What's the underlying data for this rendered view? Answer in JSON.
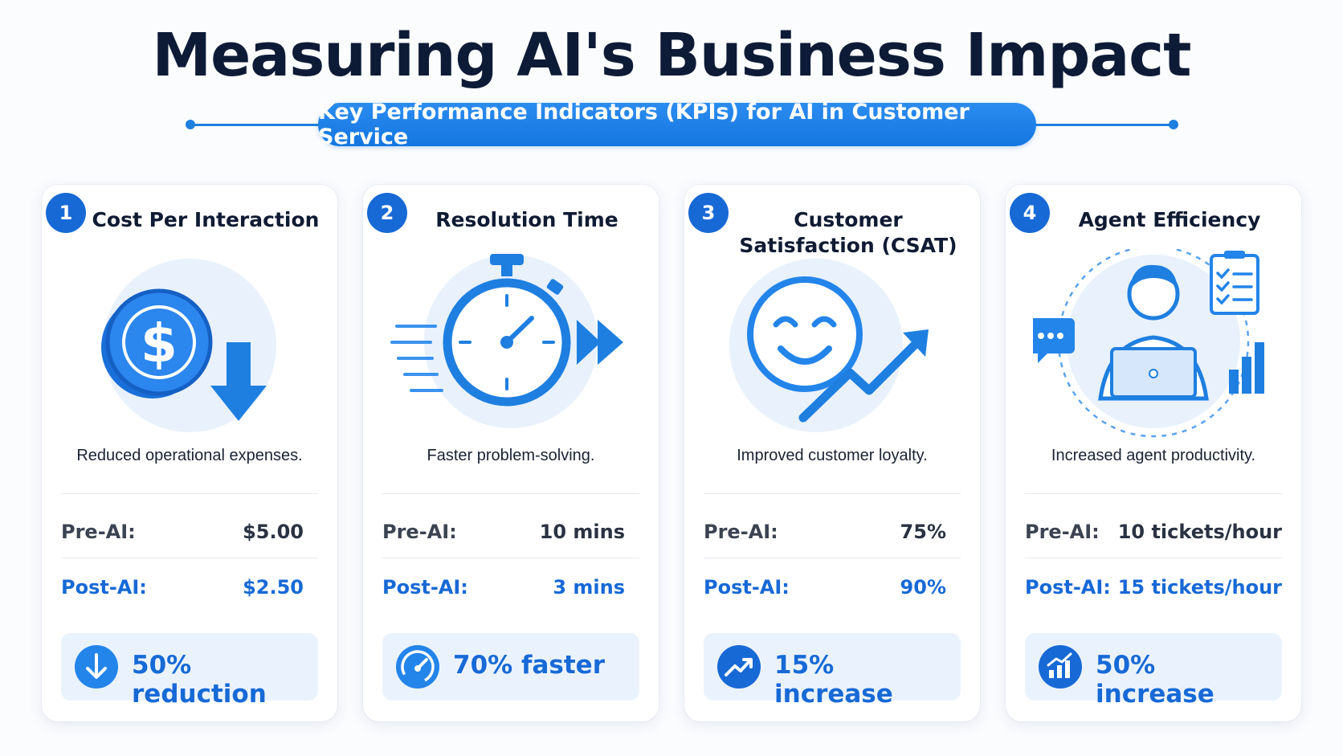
{
  "header": {
    "title": "Measuring AI's Business Impact",
    "subtitle": "Key Performance Indicators (KPIs) for AI in Customer Service"
  },
  "colors": {
    "accent": "#1769d6",
    "accent_light": "#eaf3fd",
    "title": "#0d1b36"
  },
  "cards": [
    {
      "number": "1",
      "title": "Cost Per Interaction",
      "description": "Reduced operational expenses.",
      "pre_label": "Pre-AI:",
      "pre_value": "$5.00",
      "post_label": "Post-AI:",
      "post_value": "$2.50",
      "impact": "50% reduction",
      "illustration_icon": "coin-down-arrow-icon",
      "impact_icon": "arrow-down-icon"
    },
    {
      "number": "2",
      "title": "Resolution Time",
      "description": "Faster problem-solving.",
      "pre_label": "Pre-AI:",
      "pre_value": "10 mins",
      "post_label": "Post-AI:",
      "post_value": "3 mins",
      "impact": "70% faster",
      "illustration_icon": "stopwatch-icon",
      "impact_icon": "speedometer-icon"
    },
    {
      "number": "3",
      "title": "Customer Satisfaction (CSAT)",
      "description": "Improved customer loyalty.",
      "pre_label": "Pre-AI:",
      "pre_value": "75%",
      "post_label": "Post-AI:",
      "post_value": "90%",
      "impact": "15% increase",
      "illustration_icon": "smiley-trend-icon",
      "impact_icon": "trend-up-icon"
    },
    {
      "number": "4",
      "title": "Agent Efficiency",
      "description": "Increased agent productivity.",
      "pre_label": "Pre-AI:",
      "pre_value": "10 tickets/hour",
      "post_label": "Post-AI:",
      "post_value": "15 tickets/hour",
      "impact": "50% increase",
      "illustration_icon": "agent-laptop-icon",
      "impact_icon": "bar-chart-up-icon"
    }
  ]
}
